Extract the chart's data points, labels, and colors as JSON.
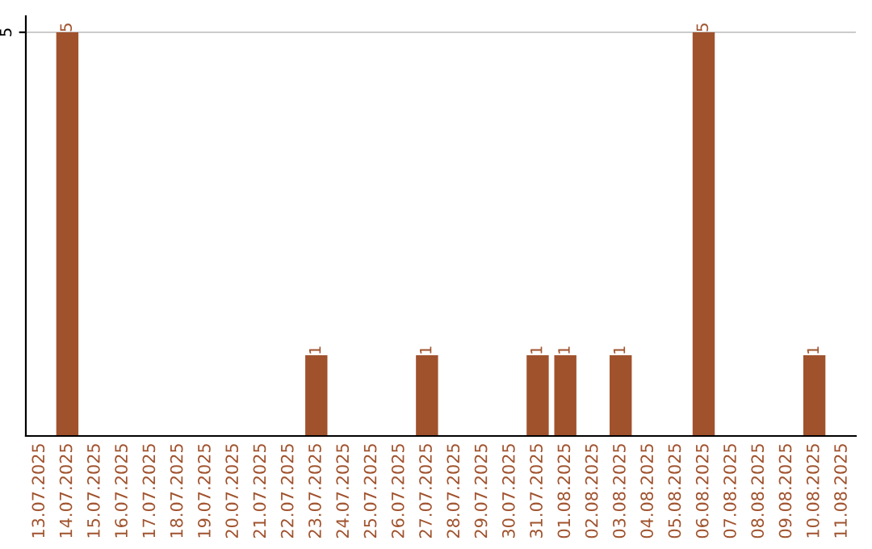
{
  "chart_data": {
    "type": "bar",
    "categories": [
      "13.07.2025",
      "14.07.2025",
      "15.07.2025",
      "16.07.2025",
      "17.07.2025",
      "18.07.2025",
      "19.07.2025",
      "20.07.2025",
      "21.07.2025",
      "22.07.2025",
      "23.07.2025",
      "24.07.2025",
      "25.07.2025",
      "26.07.2025",
      "27.07.2025",
      "28.07.2025",
      "29.07.2025",
      "30.07.2025",
      "31.07.2025",
      "01.08.2025",
      "02.08.2025",
      "03.08.2025",
      "04.08.2025",
      "05.08.2025",
      "06.08.2025",
      "07.08.2025",
      "08.08.2025",
      "09.08.2025",
      "10.08.2025",
      "11.08.2025"
    ],
    "values": [
      0,
      5,
      0,
      0,
      0,
      0,
      0,
      0,
      0,
      0,
      1,
      0,
      0,
      0,
      1,
      0,
      0,
      0,
      1,
      1,
      0,
      1,
      0,
      0,
      5,
      0,
      0,
      0,
      1,
      0
    ],
    "value_labels": [
      null,
      "5",
      null,
      null,
      null,
      null,
      null,
      null,
      null,
      null,
      "1",
      null,
      null,
      null,
      "1",
      null,
      null,
      null,
      "1",
      "1",
      null,
      "1",
      null,
      null,
      "5",
      null,
      null,
      null,
      "1",
      null
    ],
    "color": "#a0522d",
    "ylim": [
      0,
      5.2
    ],
    "yticks": [
      5
    ],
    "grid": "y",
    "legend": false
  }
}
